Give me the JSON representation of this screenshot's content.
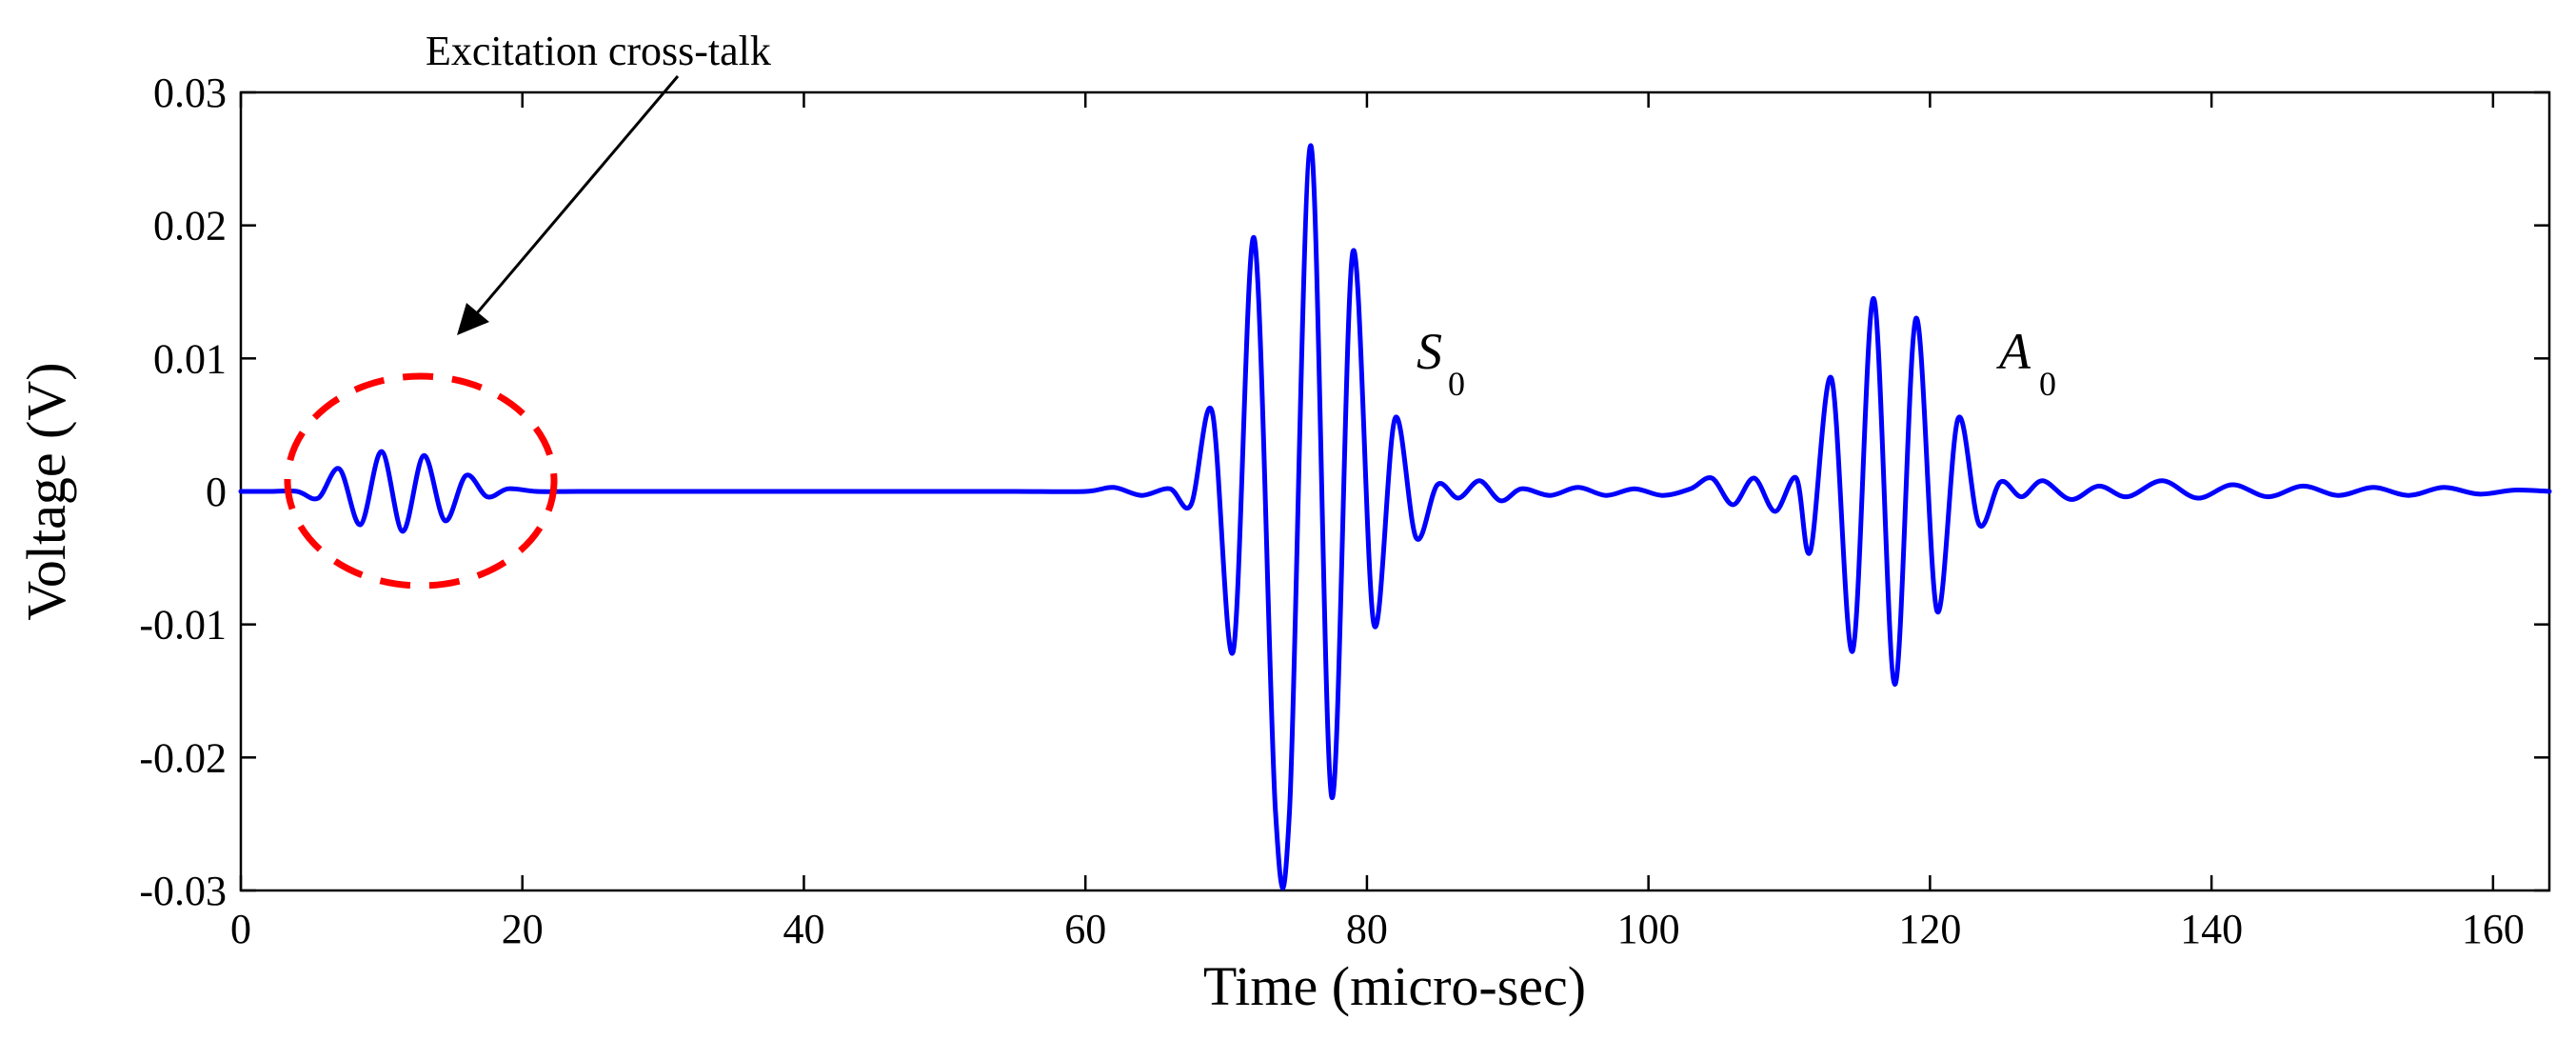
{
  "chart_data": {
    "type": "line",
    "xlabel": "Time (micro-sec)",
    "ylabel": "Voltage (V)",
    "xlim": [
      0,
      164
    ],
    "ylim": [
      -0.03,
      0.03
    ],
    "x_ticks": [
      0,
      20,
      40,
      60,
      80,
      100,
      120,
      140,
      160
    ],
    "y_ticks": [
      0.03,
      0.02,
      0.01,
      0,
      -0.01,
      -0.02,
      -0.03
    ],
    "x_tick_labels": [
      "0",
      "20",
      "40",
      "60",
      "80",
      "100",
      "120",
      "140",
      "160"
    ],
    "y_tick_labels": [
      "0.03",
      "0.02",
      "0.01",
      "0",
      "-0.01",
      "-0.02",
      "-0.03"
    ],
    "grid": false,
    "series": [
      {
        "color": "#0000ff",
        "x": [
          0,
          2,
          4,
          5.5,
          7,
          8.5,
          10,
          11.5,
          13,
          14.5,
          16,
          17.5,
          19,
          21,
          24,
          30,
          40,
          50,
          55,
          60,
          62,
          64,
          66,
          67.5,
          69,
          70.5,
          72,
          73.5,
          74.5,
          76,
          77.5,
          79,
          80.5,
          82,
          83.5,
          85,
          86.5,
          88,
          89.5,
          91,
          93,
          95,
          97,
          99,
          101,
          103,
          104.5,
          106,
          107.5,
          109,
          110.5,
          111.5,
          113,
          114.5,
          116,
          117.5,
          119,
          120.5,
          122,
          123.5,
          125,
          126.5,
          128,
          130,
          132,
          134,
          136.5,
          139,
          141.5,
          144,
          146.5,
          149,
          151.5,
          154,
          156.5,
          159,
          161.5,
          164
        ],
        "y": [
          0,
          0,
          0,
          -0.0005,
          0.0017,
          -0.0025,
          0.003,
          -0.003,
          0.0027,
          -0.0022,
          0.0012,
          -0.0004,
          0.0002,
          0,
          0,
          0,
          0,
          0,
          0,
          0,
          0.0003,
          -0.0003,
          0.0002,
          -0.001,
          0.006,
          -0.012,
          0.019,
          -0.024,
          -0.024,
          0.026,
          -0.023,
          0.018,
          -0.01,
          0.0055,
          -0.0035,
          0.0005,
          -0.0005,
          0.0008,
          -0.0007,
          0.0002,
          -0.0003,
          0.0003,
          -0.0003,
          0.0002,
          -0.0003,
          0.0002,
          0.001,
          -0.001,
          0.001,
          -0.0015,
          0.001,
          -0.0045,
          0.0085,
          -0.012,
          0.0145,
          -0.0145,
          0.013,
          -0.009,
          0.0055,
          -0.0025,
          0.0007,
          -0.0004,
          0.0008,
          -0.0006,
          0.0004,
          -0.0004,
          0.0008,
          -0.0005,
          0.0005,
          -0.0004,
          0.0004,
          -0.0003,
          0.0003,
          -0.0003,
          0.0003,
          -0.0002,
          0.0001,
          0
        ]
      }
    ],
    "annotations": {
      "crosstalk": {
        "text": "Excitation cross-talk"
      },
      "s0": {
        "letter": "S",
        "sub": "0"
      },
      "a0": {
        "letter": "A",
        "sub": "0"
      }
    }
  }
}
